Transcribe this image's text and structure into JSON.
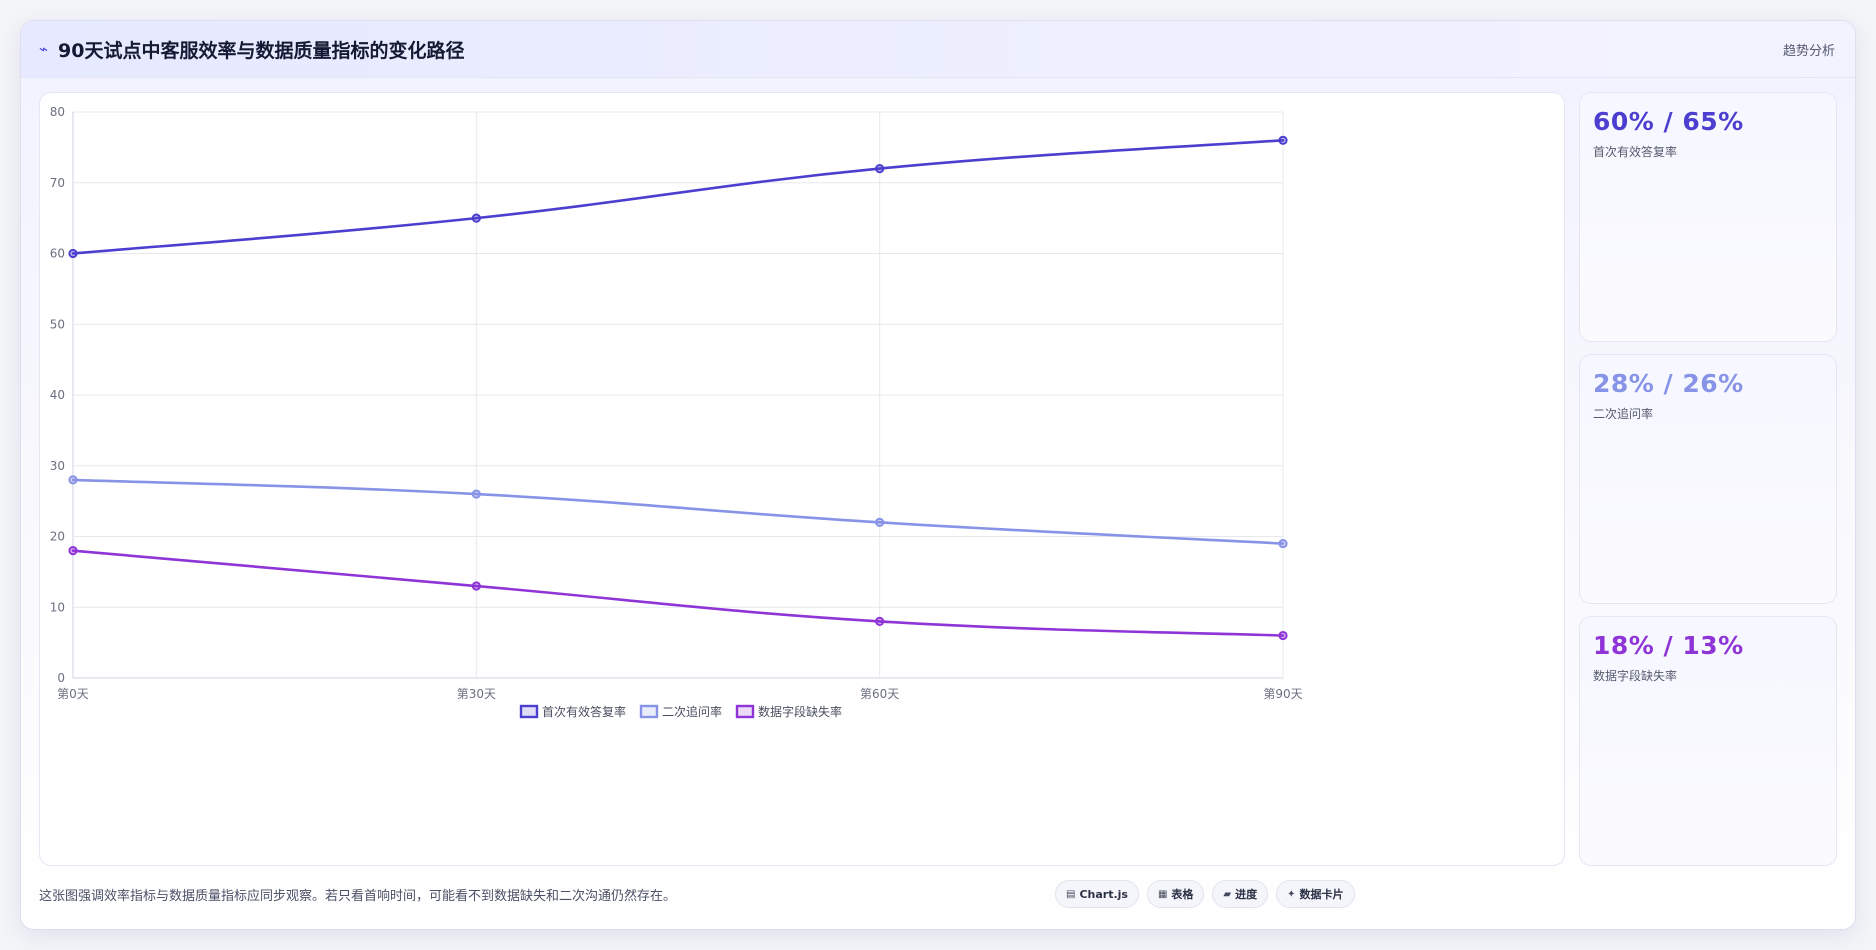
{
  "header": {
    "title": "90天试点中客服效率与数据质量指标的变化路径",
    "icon": "trend-icon",
    "tag": "趋势分析"
  },
  "stats": [
    {
      "value": "60% / 65%",
      "label": "首次有效答复率",
      "color": "#4c3fcf"
    },
    {
      "value": "28% / 26%",
      "label": "二次追问率",
      "color": "#8793e6"
    },
    {
      "value": "18% / 13%",
      "label": "数据字段缺失率",
      "color": "#8f34d6"
    }
  ],
  "footer": {
    "note": "这张图强调效率指标与数据质量指标应同步观察。若只看首响时间，可能看不到数据缺失和二次沟通仍然存在。",
    "chips": [
      {
        "icon": "chart-icon",
        "label": "Chart.js"
      },
      {
        "icon": "table-icon",
        "label": "表格"
      },
      {
        "icon": "progress-icon",
        "label": "进度"
      },
      {
        "icon": "card-icon",
        "label": "数据卡片"
      }
    ]
  },
  "chart_data": {
    "type": "line",
    "x": [
      "第0天",
      "第30天",
      "第60天",
      "第90天"
    ],
    "ylim": [
      0,
      80
    ],
    "yticks": [
      0,
      10,
      20,
      30,
      40,
      50,
      60,
      70,
      80
    ],
    "grid": true,
    "legend_position": "bottom",
    "series": [
      {
        "name": "首次有效答复率",
        "values": [
          60,
          65,
          72,
          76
        ],
        "color": "#4c3fcf"
      },
      {
        "name": "二次追问率",
        "values": [
          28,
          26,
          22,
          19
        ],
        "color": "#8793e6"
      },
      {
        "name": "数据字段缺失率",
        "values": [
          18,
          13,
          8,
          6
        ],
        "color": "#8f34d6"
      }
    ]
  }
}
